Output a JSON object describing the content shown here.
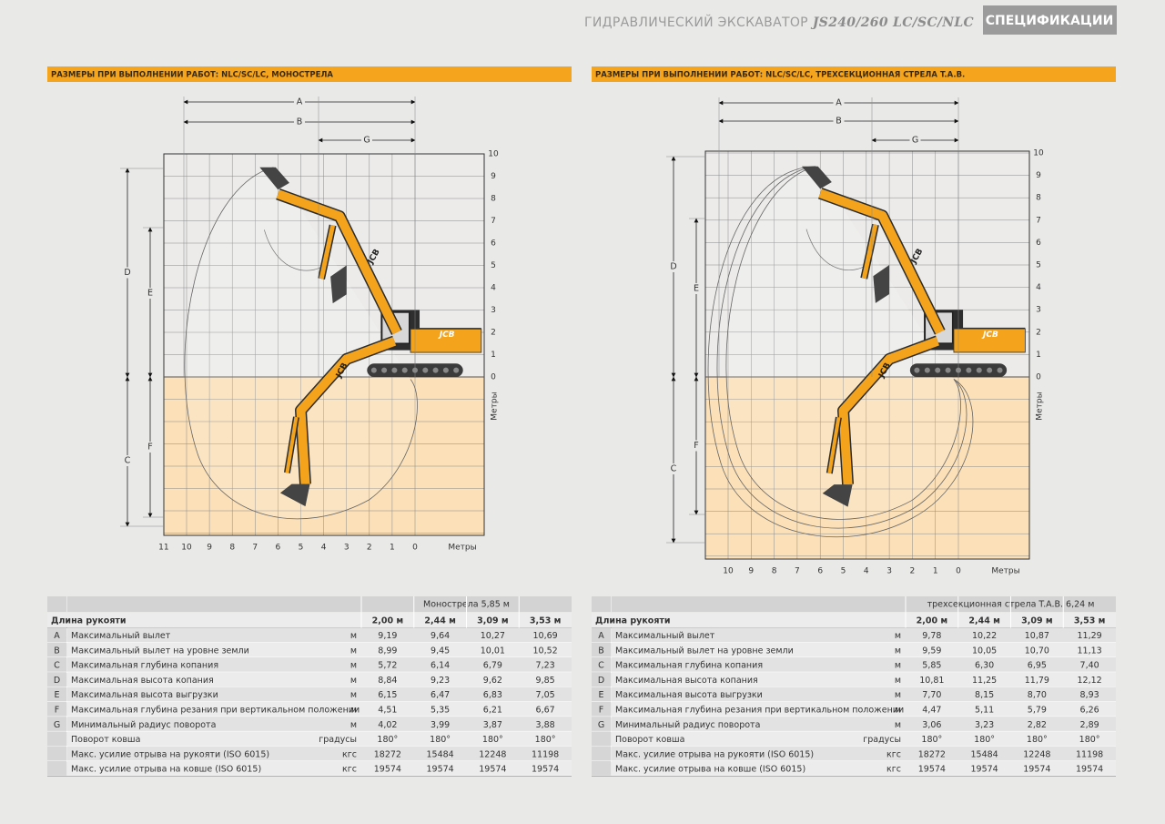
{
  "header": {
    "title": "ГИДРАВЛИЧЕСКИЙ ЭКСКАВАТОР",
    "model": "JS240/260 LC/SC/NLC",
    "tab": "СПЕЦИФИКАЦИИ"
  },
  "panels": [
    {
      "heading": "РАЗМЕРЫ ПРИ ВЫПОЛНЕНИИ РАБОТ: NLC/SC/LC, МОНОСТРЕЛА",
      "dimension_labels": [
        "A",
        "B",
        "G",
        "D",
        "E",
        "C",
        "F"
      ],
      "logo": "JCB",
      "yticks": [
        0,
        1,
        2,
        3,
        4,
        5,
        6,
        7,
        8,
        9,
        10
      ],
      "y_axis_label": "Метры",
      "xticks": [
        11,
        10,
        9,
        8,
        7,
        6,
        5,
        4,
        3,
        2,
        1,
        0
      ],
      "x_axis_label": "Метры",
      "table": {
        "boom": "Монострела 5,85 м",
        "arm_header": "Длина рукояти",
        "arms": [
          "2,00 м",
          "2,44 м",
          "3,09 м",
          "3,53 м"
        ],
        "rows": [
          {
            "letter": "A",
            "label": "Максимальный вылет",
            "unit": "м",
            "values": [
              "9,19",
              "9,64",
              "10,27",
              "10,69"
            ]
          },
          {
            "letter": "B",
            "label": "Максимальный вылет на уровне земли",
            "unit": "м",
            "values": [
              "8,99",
              "9,45",
              "10,01",
              "10,52"
            ]
          },
          {
            "letter": "C",
            "label": "Максимальная глубина копания",
            "unit": "м",
            "values": [
              "5,72",
              "6,14",
              "6,79",
              "7,23"
            ]
          },
          {
            "letter": "D",
            "label": "Максимальная высота копания",
            "unit": "м",
            "values": [
              "8,84",
              "9,23",
              "9,62",
              "9,85"
            ]
          },
          {
            "letter": "E",
            "label": "Максимальная высота выгрузки",
            "unit": "м",
            "values": [
              "6,15",
              "6,47",
              "6,83",
              "7,05"
            ]
          },
          {
            "letter": "F",
            "label": "Максимальная глубина резания при вертикальном положении",
            "unit": "м",
            "values": [
              "4,51",
              "5,35",
              "6,21",
              "6,67"
            ]
          },
          {
            "letter": "G",
            "label": "Минимальный радиус поворота",
            "unit": "м",
            "values": [
              "4,02",
              "3,99",
              "3,87",
              "3,88"
            ]
          },
          {
            "label": "Поворот ковша",
            "unit": "градусы",
            "values": [
              "180°",
              "180°",
              "180°",
              "180°"
            ]
          },
          {
            "label": "Макс. усилие отрыва на рукояти (ISO 6015)",
            "unit": "кгс",
            "values": [
              "18272",
              "15484",
              "12248",
              "11198"
            ]
          },
          {
            "label": "Макс. усилие отрыва на ковше (ISO 6015)",
            "unit": "кгс",
            "values": [
              "19574",
              "19574",
              "19574",
              "19574"
            ]
          }
        ]
      }
    },
    {
      "heading": "РАЗМЕРЫ ПРИ ВЫПОЛНЕНИИ РАБОТ: NLC/SC/LC, ТРЕХСЕКЦИОННАЯ СТРЕЛА T.A.B.",
      "dimension_labels": [
        "A",
        "B",
        "G",
        "D",
        "E",
        "C",
        "F"
      ],
      "logo": "JCB",
      "yticks": [
        0,
        1,
        2,
        3,
        4,
        5,
        6,
        7,
        8,
        9,
        10
      ],
      "y_axis_label": "Метры",
      "xticks": [
        10,
        9,
        8,
        7,
        6,
        5,
        4,
        3,
        2,
        1,
        0
      ],
      "x_axis_label": "Метры",
      "table": {
        "boom": "трехсекционная стрела T.A.B. 6,24 м",
        "arm_header": "Длина рукояти",
        "arms": [
          "2,00 м",
          "2,44 м",
          "3,09 м",
          "3,53 м"
        ],
        "rows": [
          {
            "letter": "A",
            "label": "Максимальный вылет",
            "unit": "м",
            "values": [
              "9,78",
              "10,22",
              "10,87",
              "11,29"
            ]
          },
          {
            "letter": "B",
            "label": "Максимальный вылет на уровне земли",
            "unit": "м",
            "values": [
              "9,59",
              "10,05",
              "10,70",
              "11,13"
            ]
          },
          {
            "letter": "C",
            "label": "Максимальная глубина копания",
            "unit": "м",
            "values": [
              "5,85",
              "6,30",
              "6,95",
              "7,40"
            ]
          },
          {
            "letter": "D",
            "label": "Максимальная высота копания",
            "unit": "м",
            "values": [
              "10,81",
              "11,25",
              "11,79",
              "12,12"
            ]
          },
          {
            "letter": "E",
            "label": "Максимальная высота выгрузки",
            "unit": "м",
            "values": [
              "7,70",
              "8,15",
              "8,70",
              "8,93"
            ]
          },
          {
            "letter": "F",
            "label": "Максимальная глубина резания при вертикальном положении",
            "unit": "м",
            "values": [
              "4,47",
              "5,11",
              "5,79",
              "6,26"
            ]
          },
          {
            "letter": "G",
            "label": "Минимальный радиус поворота",
            "unit": "м",
            "values": [
              "3,06",
              "3,23",
              "2,82",
              "2,89"
            ]
          },
          {
            "label": "Поворот ковша",
            "unit": "градусы",
            "values": [
              "180°",
              "180°",
              "180°",
              "180°"
            ]
          },
          {
            "label": "Макс. усилие отрыва на рукояти (ISO 6015)",
            "unit": "кгс",
            "values": [
              "18272",
              "15484",
              "12248",
              "11198"
            ]
          },
          {
            "label": "Макс. усилие отрыва на ковше (ISO 6015)",
            "unit": "кгс",
            "values": [
              "19574",
              "19574",
              "19574",
              "19574"
            ]
          }
        ]
      }
    }
  ]
}
